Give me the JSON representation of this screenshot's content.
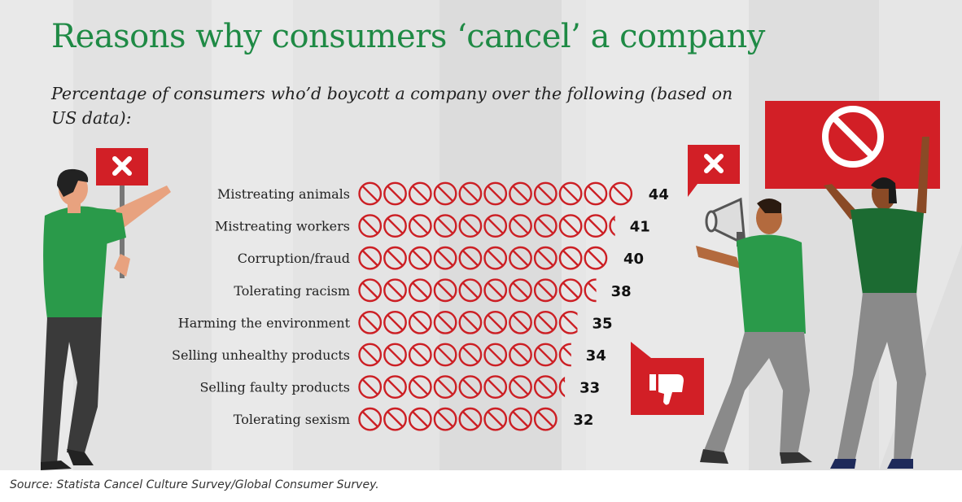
{
  "title": "Reasons why consumers ‘cancel’ a company",
  "subtitle": "Percentage of consumers who’d boycott a company over the following (based on US data):",
  "source": "Source: Statista Cancel Culture Survey/Global Consumer Survey.",
  "colors": {
    "accent_green": "#1f8a45",
    "icon_red": "#cc1f24",
    "sign_red": "#d21f26",
    "shirt_green": "#2a9a4a",
    "shirt_dark_green": "#1c6b32",
    "pants_gray": "#8a8a8a",
    "pants_dark": "#3a3a3a"
  },
  "icons": [
    "no-entry-sign-icon",
    "x-mark-icon",
    "megaphone-icon",
    "thumbs-down-icon",
    "prohibition-symbol-icon"
  ],
  "chart_data": {
    "type": "bar",
    "orientation": "horizontal",
    "unit": "percent",
    "unit_symbol_value": 4,
    "categories": [
      "Mistreating animals",
      "Mistreating workers",
      "Corruption/fraud",
      "Tolerating racism",
      "Harming the environment",
      "Selling unhealthy products",
      "Selling faulty products",
      "Tolerating sexism"
    ],
    "values": [
      44,
      41,
      40,
      38,
      35,
      34,
      33,
      32
    ],
    "grid": false,
    "legend": "none"
  }
}
